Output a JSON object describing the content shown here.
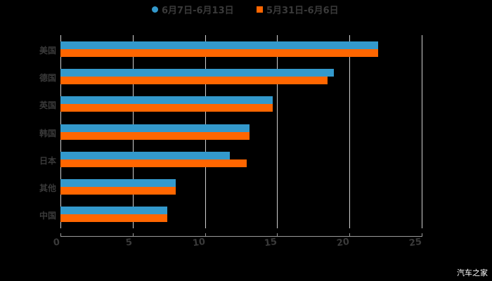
{
  "legend": {
    "series1": {
      "label": "6月7日-6月13日",
      "color": "#3399cc"
    },
    "series2": {
      "label": "5月31日-6月6日",
      "color": "#ff6600"
    }
  },
  "axis": {
    "ticks": [
      "0",
      "5",
      "10",
      "15",
      "20",
      "25"
    ]
  },
  "categories": [
    "美国",
    "德国",
    "英国",
    "韩国",
    "日本",
    "其他",
    "中国"
  ],
  "watermark": "汽车之家",
  "chart_data": {
    "type": "bar",
    "orientation": "horizontal",
    "title": "",
    "xlabel": "",
    "ylabel": "",
    "categories": [
      "美国",
      "德国",
      "英国",
      "韩国",
      "日本",
      "其他",
      "中国"
    ],
    "series": [
      {
        "name": "6月7日-6月13日",
        "color": "#3399cc",
        "values": [
          22.0,
          18.9,
          14.7,
          13.1,
          11.7,
          8.0,
          7.4
        ]
      },
      {
        "name": "5月31日-6月6日",
        "color": "#ff6600",
        "values": [
          22.0,
          18.5,
          14.7,
          13.1,
          12.9,
          8.0,
          7.4
        ]
      }
    ],
    "xlim": [
      0,
      25
    ],
    "xticks": [
      0,
      5,
      10,
      15,
      20,
      25
    ],
    "grid": "vertical",
    "legend_position": "top"
  }
}
